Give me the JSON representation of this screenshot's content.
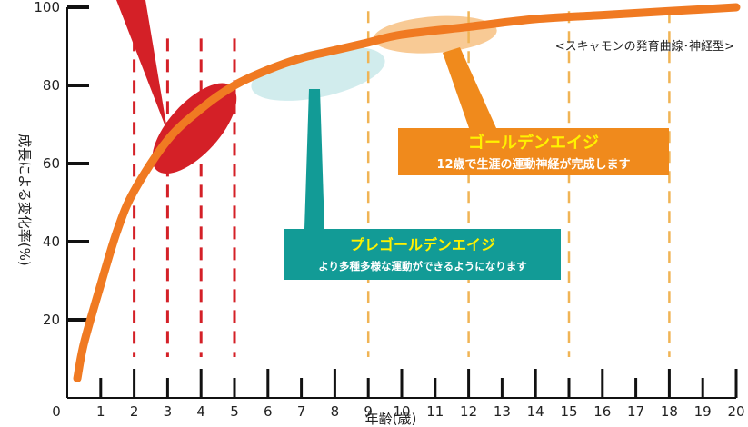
{
  "chart_data": {
    "type": "line",
    "subtitle": "<スキャモンの発育曲線･神経型>",
    "ylabel": "成長による変化率(%)",
    "xlabel": "年齢(歳)",
    "xlim": [
      0,
      20
    ],
    "ylim": [
      0,
      100
    ],
    "x_ticks": [
      "0",
      "1",
      "2",
      "3",
      "4",
      "5",
      "6",
      "7",
      "8",
      "9",
      "10",
      "11",
      "12",
      "13",
      "14",
      "15",
      "16",
      "17",
      "18",
      "19",
      "20"
    ],
    "y_ticks": [
      "20",
      "40",
      "60",
      "80",
      "100"
    ],
    "series": [
      {
        "x": [
          0.3,
          0.5,
          1,
          1.5,
          2,
          3,
          4,
          5,
          6,
          7,
          8,
          9,
          10,
          12,
          14,
          16,
          18,
          20
        ],
        "values": [
          5,
          14,
          29,
          43,
          53,
          66,
          74,
          80,
          84,
          87,
          89,
          91,
          93,
          95,
          97,
          98,
          99,
          100
        ],
        "color": "#f07a22"
      }
    ],
    "markers": {
      "red_dashed_x": [
        2,
        3,
        4,
        5
      ],
      "orange_dashed_x": [
        9,
        12,
        15,
        18
      ],
      "red_color": "#d42027",
      "orange_color": "#f0b455"
    },
    "annotations": {
      "golden_age": {
        "title": "ゴールデンエイジ",
        "subtitle": "12歳で生涯の運動神経が完成します",
        "bg_color": "#f08a1c",
        "title_color": "#fff200"
      },
      "pre_golden_age": {
        "title": "プレゴールデンエイジ",
        "subtitle": "より多種多様な運動ができるようになります",
        "bg_color": "#129b96",
        "title_color": "#fff200"
      }
    }
  }
}
